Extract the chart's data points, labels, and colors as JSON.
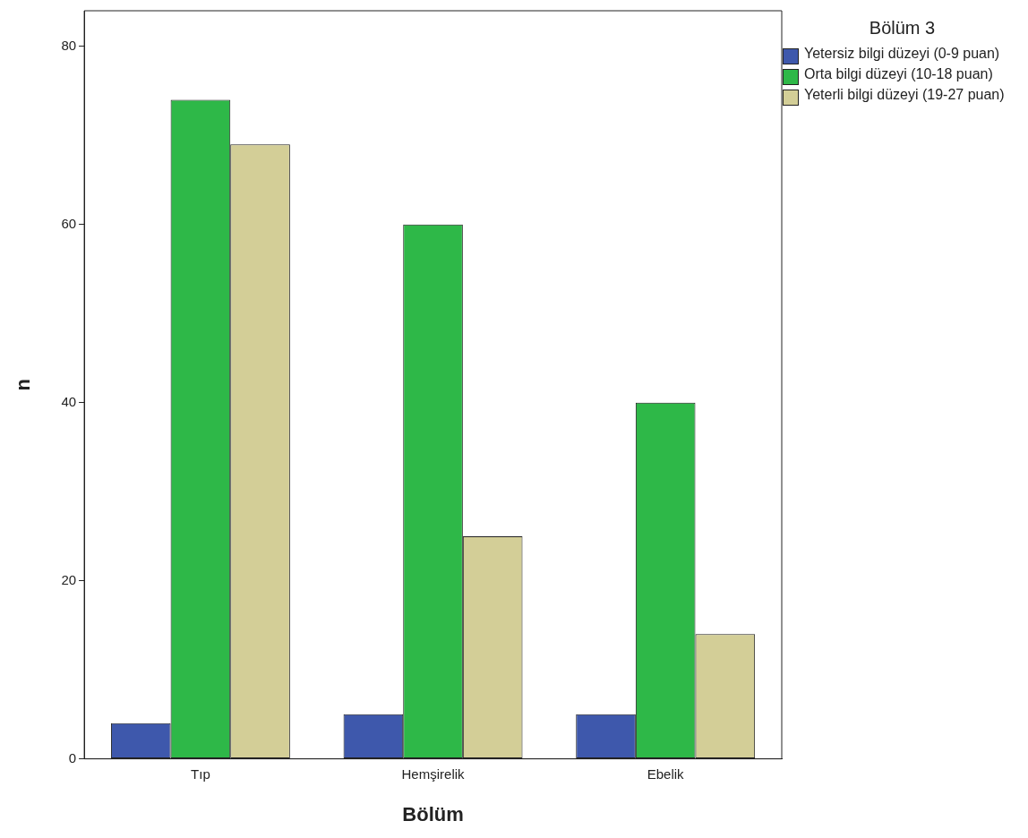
{
  "chart_data": {
    "type": "bar",
    "xlabel": "Bölüm",
    "ylabel": "n",
    "legend_title": "Bölüm 3",
    "legend": "right",
    "categories": [
      "Tıp",
      "Hemşirelik",
      "Ebelik"
    ],
    "series": [
      {
        "name": "Yetersiz bilgi düzeyi (0-9 puan)",
        "color": "#3e58ac",
        "values": [
          4,
          5,
          5
        ]
      },
      {
        "name": "Orta bilgi düzeyi (10-18 puan)",
        "color": "#2eb848",
        "values": [
          74,
          60,
          40
        ]
      },
      {
        "name": "Yeterli bilgi düzeyi (19-27 puan)",
        "color": "#d3ce97",
        "values": [
          69,
          25,
          14
        ]
      }
    ],
    "ylim": [
      0,
      84
    ],
    "yticks": [
      0,
      20,
      40,
      60,
      80
    ],
    "grid": false
  }
}
